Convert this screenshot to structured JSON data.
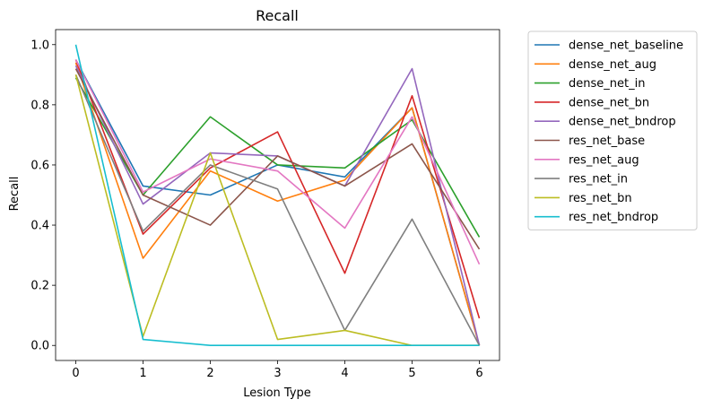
{
  "chart_data": {
    "type": "line",
    "title": "Recall",
    "xlabel": "Lesion Type",
    "ylabel": "Recall",
    "x": [
      0,
      1,
      2,
      3,
      4,
      5,
      6
    ],
    "xticks": [
      "0",
      "1",
      "2",
      "3",
      "4",
      "5",
      "6"
    ],
    "yticks": [
      "0.0",
      "0.2",
      "0.4",
      "0.6",
      "0.8",
      "1.0"
    ],
    "xlim": [
      -0.3,
      6.3
    ],
    "ylim": [
      -0.05,
      1.05
    ],
    "grid": false,
    "legend_position": "outside-right",
    "series": [
      {
        "name": "dense_net_baseline",
        "color": "#1f77b4",
        "values": [
          0.95,
          0.53,
          0.5,
          0.6,
          0.56,
          0.79,
          0.0
        ]
      },
      {
        "name": "dense_net_aug",
        "color": "#ff7f0e",
        "values": [
          0.94,
          0.29,
          0.58,
          0.48,
          0.55,
          0.79,
          0.0
        ]
      },
      {
        "name": "dense_net_in",
        "color": "#2ca02c",
        "values": [
          0.89,
          0.5,
          0.76,
          0.6,
          0.59,
          0.75,
          0.36
        ]
      },
      {
        "name": "dense_net_bn",
        "color": "#d62728",
        "values": [
          0.95,
          0.37,
          0.59,
          0.71,
          0.24,
          0.83,
          0.09
        ]
      },
      {
        "name": "dense_net_bndrop",
        "color": "#9467bd",
        "values": [
          0.93,
          0.47,
          0.64,
          0.63,
          0.53,
          0.92,
          0.0
        ]
      },
      {
        "name": "res_net_base",
        "color": "#8c564b",
        "values": [
          0.92,
          0.5,
          0.4,
          0.63,
          0.53,
          0.67,
          0.32
        ]
      },
      {
        "name": "res_net_aug",
        "color": "#e377c2",
        "values": [
          0.95,
          0.51,
          0.62,
          0.58,
          0.39,
          0.76,
          0.27
        ]
      },
      {
        "name": "res_net_in",
        "color": "#7f7f7f",
        "values": [
          0.9,
          0.38,
          0.6,
          0.52,
          0.05,
          0.42,
          0.0
        ]
      },
      {
        "name": "res_net_bn",
        "color": "#bcbd22",
        "values": [
          0.9,
          0.03,
          0.64,
          0.02,
          0.05,
          0.0,
          0.0
        ]
      },
      {
        "name": "res_net_bndrop",
        "color": "#17becf",
        "values": [
          1.0,
          0.02,
          0.0,
          0.0,
          0.0,
          0.0,
          0.0
        ]
      }
    ]
  }
}
